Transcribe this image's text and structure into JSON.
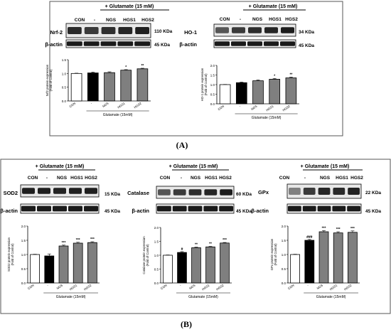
{
  "figure": {
    "panel_a_label": "(A)",
    "panel_b_label": "(B)"
  },
  "panels": [
    {
      "id": "nrf2",
      "group": "A",
      "treatment_label": "+ Glutamate (15 mM)",
      "lane_labels": [
        "CON",
        "-",
        "NGS",
        "HGS1",
        "HGS2"
      ],
      "target_label": "Nrf-2",
      "target_size": "110 KDa",
      "actin_label": "β-actin",
      "actin_size": "45 KDa"
    },
    {
      "id": "ho1",
      "group": "A",
      "treatment_label": "+ Glutamate (15 mM)",
      "lane_labels": [
        "CON",
        "-",
        "NGS",
        "HGS1",
        "HGS2"
      ],
      "target_label": "HO-1",
      "target_size": "34 KDa",
      "actin_label": "β-actin",
      "actin_size": "45 KDa"
    },
    {
      "id": "sod2",
      "group": "B",
      "treatment_label": "+ Glutamate (15 mM)",
      "lane_labels": [
        "CON",
        "-",
        "NGS",
        "HGS1",
        "HGS2"
      ],
      "target_label": "SOD2",
      "target_size": "15 KDa",
      "actin_label": "β-actin",
      "actin_size": "45 KDa"
    },
    {
      "id": "catalase",
      "group": "B",
      "treatment_label": "+ Glutamate (15 mM)",
      "lane_labels": [
        "CON",
        "-",
        "NGS",
        "HGS1",
        "HGS2"
      ],
      "target_label": "Catalase",
      "target_size": "60 KDa",
      "actin_label": "β-actin",
      "actin_size": "45 KDa"
    },
    {
      "id": "gpx",
      "group": "B",
      "treatment_label": "+ Glutamate (15 mM)",
      "lane_labels": [
        "CON",
        "-",
        "NGS",
        "HGS1",
        "HGS2"
      ],
      "target_label": "GPx",
      "target_size": "22 KDa",
      "actin_label": "β-actin",
      "actin_size": "45 KDa"
    }
  ],
  "chart_data": [
    {
      "id": "nrf2",
      "type": "bar",
      "categories": [
        "CON",
        "-",
        "NGS",
        "HGS1",
        "HGS2"
      ],
      "values": [
        1.0,
        1.02,
        1.03,
        1.12,
        1.17
      ],
      "errors": [
        0.01,
        0.03,
        0.03,
        0.02,
        0.02
      ],
      "significance": [
        "",
        "",
        "",
        "*",
        "**"
      ],
      "bar_colors": [
        "#ffffff",
        "#000000",
        "#7f7f7f",
        "#7f7f7f",
        "#7f7f7f"
      ],
      "ylim": [
        0.0,
        1.5
      ],
      "yticks": [
        "0.0",
        "0.5",
        "1.0",
        "1.5"
      ],
      "ylabel": "Nrf2 protein expression\n(Fold of Control)",
      "xlabel": "Glutamate (15mM)",
      "title": ""
    },
    {
      "id": "ho1",
      "type": "bar",
      "categories": [
        "CON",
        "-",
        "NGS",
        "HGS1",
        "HGS2"
      ],
      "values": [
        1.0,
        1.1,
        1.2,
        1.28,
        1.35
      ],
      "errors": [
        0.01,
        0.03,
        0.04,
        0.04,
        0.04
      ],
      "significance": [
        "",
        "",
        "",
        "*",
        "**"
      ],
      "bar_colors": [
        "#ffffff",
        "#000000",
        "#7f7f7f",
        "#7f7f7f",
        "#7f7f7f"
      ],
      "ylim": [
        0.0,
        2.0
      ],
      "yticks": [
        "0.0",
        "0.5",
        "1.0",
        "1.5",
        "2.0"
      ],
      "ylabel": "HO-1 protein expression\n(Fold of Control)",
      "xlabel": "Glutamate (15mM)",
      "title": ""
    },
    {
      "id": "sod2",
      "type": "bar",
      "categories": [
        "CON",
        "-",
        "NGS",
        "HGS1",
        "HGS2"
      ],
      "values": [
        1.0,
        0.95,
        1.3,
        1.4,
        1.42
      ],
      "errors": [
        0.01,
        0.07,
        0.03,
        0.03,
        0.03
      ],
      "significance": [
        "",
        "",
        "***",
        "***",
        "***"
      ],
      "bar_colors": [
        "#ffffff",
        "#000000",
        "#7f7f7f",
        "#7f7f7f",
        "#7f7f7f"
      ],
      "ylim": [
        0.0,
        2.0
      ],
      "yticks": [
        "0.0",
        "0.5",
        "1.0",
        "1.5",
        "2.0"
      ],
      "ylabel": "SOD2 protein expression\n(Fold of Control)",
      "xlabel": "Glutamate (15mM)",
      "title": ""
    },
    {
      "id": "catalase",
      "type": "bar",
      "categories": [
        "CON",
        "-",
        "NGS",
        "HGS1",
        "HGS2"
      ],
      "values": [
        1.0,
        1.1,
        1.27,
        1.3,
        1.44
      ],
      "errors": [
        0.01,
        0.03,
        0.02,
        0.02,
        0.02
      ],
      "significance": [
        "",
        "#",
        "**",
        "**",
        "***"
      ],
      "bar_colors": [
        "#ffffff",
        "#000000",
        "#7f7f7f",
        "#7f7f7f",
        "#7f7f7f"
      ],
      "ylim": [
        0.0,
        2.0
      ],
      "yticks": [
        "0.0",
        "0.5",
        "1.0",
        "1.5",
        "2.0"
      ],
      "ylabel": "Catalase protein expression\n(Fold of Control)",
      "xlabel": "Glutamate (15mM)",
      "title": ""
    },
    {
      "id": "gpx",
      "type": "bar",
      "categories": [
        "CON",
        "-",
        "NGS",
        "HGS1",
        "HGS2"
      ],
      "values": [
        1.0,
        1.5,
        1.8,
        1.76,
        1.78
      ],
      "errors": [
        0.01,
        0.03,
        0.04,
        0.04,
        0.05
      ],
      "significance": [
        "",
        "###",
        "***",
        "***",
        "***"
      ],
      "bar_colors": [
        "#ffffff",
        "#000000",
        "#7f7f7f",
        "#7f7f7f",
        "#7f7f7f"
      ],
      "ylim": [
        0.0,
        2.0
      ],
      "yticks": [
        "0.0",
        "0.5",
        "1.0",
        "1.5",
        "2.0"
      ],
      "ylabel": "GPx protein expression\n(Fold of Control)",
      "xlabel": "Glutamate (15mM)",
      "title": ""
    }
  ]
}
